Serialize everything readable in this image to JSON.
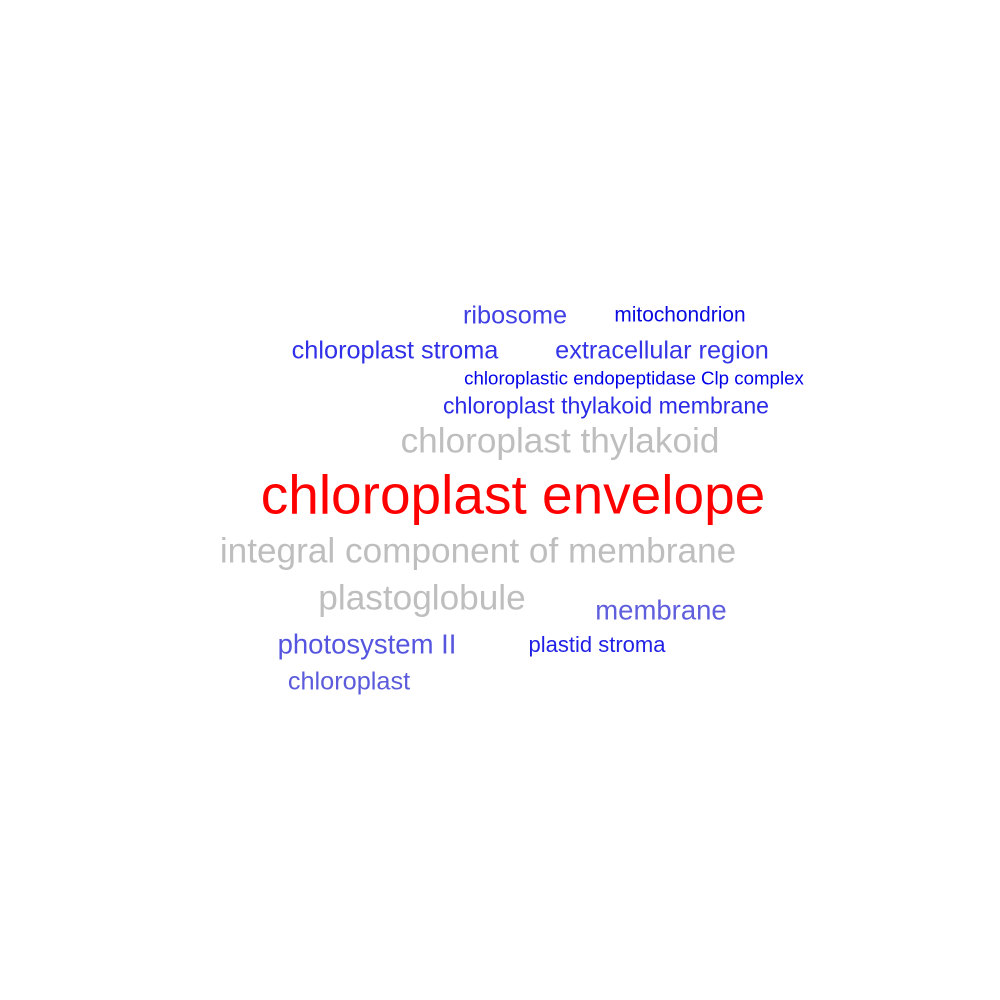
{
  "chart_data": {
    "type": "wordcloud",
    "words": [
      {
        "text": "chloroplast envelope",
        "weight": 1.0,
        "color": "#ff0000"
      },
      {
        "text": "integral component of membrane",
        "weight": 0.64,
        "color": "#bebebe"
      },
      {
        "text": "plastoglobule",
        "weight": 0.64,
        "color": "#bebebe"
      },
      {
        "text": "chloroplast thylakoid",
        "weight": 0.64,
        "color": "#bebebe"
      },
      {
        "text": "membrane",
        "weight": 0.5,
        "color": "#5f5fdd"
      },
      {
        "text": "photosystem II",
        "weight": 0.5,
        "color": "#5555e0"
      },
      {
        "text": "chloroplast",
        "weight": 0.46,
        "color": "#5b5bdc"
      },
      {
        "text": "chloroplast stroma",
        "weight": 0.46,
        "color": "#3030e8"
      },
      {
        "text": "extracellular region",
        "weight": 0.46,
        "color": "#3535e8"
      },
      {
        "text": "ribosome",
        "weight": 0.46,
        "color": "#4040e4"
      },
      {
        "text": "chloroplast thylakoid membrane",
        "weight": 0.42,
        "color": "#2a2ae8"
      },
      {
        "text": "plastid stroma",
        "weight": 0.4,
        "color": "#1f1fe6"
      },
      {
        "text": "mitochondrion",
        "weight": 0.38,
        "color": "#0a0ae0"
      },
      {
        "text": "chloroplastic endopeptidase Clp complex",
        "weight": 0.34,
        "color": "#0000e8"
      }
    ]
  }
}
